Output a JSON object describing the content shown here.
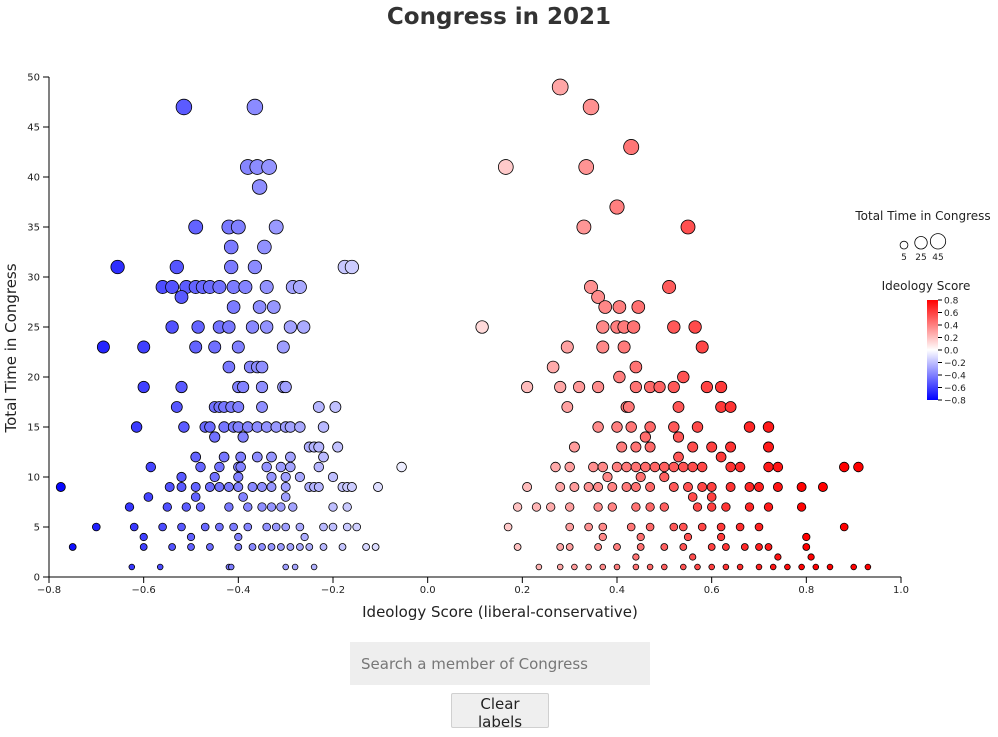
{
  "page": {
    "search_placeholder": "Search a member of Congress",
    "clear_label": "Clear labels"
  },
  "chart_data": {
    "type": "scatter",
    "title": "Congress in 2021",
    "xlabel": "Ideology Score (liberal-conservative)",
    "ylabel": "Total Time in Congress",
    "xlim": [
      -0.8,
      1.0
    ],
    "ylim": [
      0,
      50
    ],
    "xticks": [
      "−0.8",
      "−0.6",
      "−0.4",
      "−0.2",
      "0.0",
      "0.2",
      "0.4",
      "0.6",
      "0.8",
      "1.0"
    ],
    "xtick_values": [
      -0.8,
      -0.6,
      -0.4,
      -0.2,
      0.0,
      0.2,
      0.4,
      0.6,
      0.8,
      1.0
    ],
    "yticks": [
      "0",
      "5",
      "10",
      "15",
      "20",
      "25",
      "30",
      "35",
      "40",
      "45",
      "50"
    ],
    "ytick_values": [
      0,
      5,
      10,
      15,
      20,
      25,
      30,
      35,
      40,
      45,
      50
    ],
    "size_encoding": "Total Time in Congress",
    "color_encoding": "Ideology Score",
    "color_scale": {
      "min": -0.8,
      "max": 0.8,
      "low": "#0000ff",
      "mid": "#ffffff",
      "high": "#ff0000"
    },
    "legend": {
      "size_title": "Total Time in Congress",
      "size_values": [
        5,
        25,
        45
      ],
      "size_labels": [
        "5",
        "25",
        "45"
      ],
      "color_title": "Ideology Score",
      "color_ticks": [
        "0.8",
        "0.6",
        "0.4",
        "0.2",
        "0.0",
        "−0.2",
        "−0.4",
        "−0.6",
        "−0.8"
      ],
      "color_tick_values": [
        0.8,
        0.6,
        0.4,
        0.2,
        0.0,
        -0.2,
        -0.4,
        -0.6,
        -0.8
      ]
    },
    "points": [
      [
        -0.515,
        47
      ],
      [
        -0.365,
        47
      ],
      [
        -0.38,
        41
      ],
      [
        -0.36,
        41
      ],
      [
        -0.335,
        41
      ],
      [
        -0.355,
        39
      ],
      [
        -0.49,
        35
      ],
      [
        -0.42,
        35
      ],
      [
        -0.4,
        35
      ],
      [
        -0.32,
        35
      ],
      [
        -0.415,
        33
      ],
      [
        -0.345,
        33
      ],
      [
        -0.655,
        31
      ],
      [
        -0.53,
        31
      ],
      [
        -0.415,
        31
      ],
      [
        -0.365,
        31
      ],
      [
        -0.175,
        31
      ],
      [
        -0.16,
        31
      ],
      [
        -0.56,
        29
      ],
      [
        -0.54,
        29
      ],
      [
        -0.51,
        29
      ],
      [
        -0.49,
        29
      ],
      [
        -0.475,
        29
      ],
      [
        -0.46,
        29
      ],
      [
        -0.44,
        29
      ],
      [
        -0.41,
        29
      ],
      [
        -0.385,
        29
      ],
      [
        -0.34,
        29
      ],
      [
        -0.285,
        29
      ],
      [
        -0.27,
        29
      ],
      [
        -0.52,
        28
      ],
      [
        -0.41,
        27
      ],
      [
        -0.355,
        27
      ],
      [
        -0.325,
        27
      ],
      [
        -0.54,
        25
      ],
      [
        -0.485,
        25
      ],
      [
        -0.44,
        25
      ],
      [
        -0.42,
        25
      ],
      [
        -0.37,
        25
      ],
      [
        -0.34,
        25
      ],
      [
        -0.29,
        25
      ],
      [
        -0.262,
        25
      ],
      [
        -0.49,
        23
      ],
      [
        -0.45,
        23
      ],
      [
        -0.4,
        23
      ],
      [
        -0.305,
        23
      ],
      [
        -0.685,
        23
      ],
      [
        -0.6,
        23
      ],
      [
        -0.42,
        21
      ],
      [
        -0.375,
        21
      ],
      [
        -0.36,
        21
      ],
      [
        -0.35,
        21
      ],
      [
        -0.6,
        19
      ],
      [
        -0.52,
        19
      ],
      [
        -0.4,
        19
      ],
      [
        -0.39,
        19
      ],
      [
        -0.35,
        19
      ],
      [
        -0.305,
        19
      ],
      [
        -0.3,
        19
      ],
      [
        -0.53,
        17
      ],
      [
        -0.45,
        17
      ],
      [
        -0.44,
        17
      ],
      [
        -0.43,
        17
      ],
      [
        -0.415,
        17
      ],
      [
        -0.4,
        17
      ],
      [
        -0.35,
        17
      ],
      [
        -0.23,
        17
      ],
      [
        -0.195,
        17
      ],
      [
        -0.615,
        15
      ],
      [
        -0.515,
        15
      ],
      [
        -0.47,
        15
      ],
      [
        -0.46,
        15
      ],
      [
        -0.43,
        15
      ],
      [
        -0.41,
        15
      ],
      [
        -0.4,
        15
      ],
      [
        -0.38,
        15
      ],
      [
        -0.36,
        15
      ],
      [
        -0.34,
        15
      ],
      [
        -0.32,
        15
      ],
      [
        -0.3,
        15
      ],
      [
        -0.29,
        15
      ],
      [
        -0.27,
        15
      ],
      [
        -0.22,
        15
      ],
      [
        -0.45,
        14
      ],
      [
        -0.39,
        14
      ],
      [
        -0.25,
        13
      ],
      [
        -0.24,
        13
      ],
      [
        -0.23,
        13
      ],
      [
        -0.19,
        13
      ],
      [
        -0.49,
        12
      ],
      [
        -0.43,
        12
      ],
      [
        -0.395,
        12
      ],
      [
        -0.36,
        12
      ],
      [
        -0.33,
        12
      ],
      [
        -0.29,
        12
      ],
      [
        -0.22,
        12
      ],
      [
        -0.585,
        11
      ],
      [
        -0.48,
        11
      ],
      [
        -0.44,
        11
      ],
      [
        -0.4,
        11
      ],
      [
        -0.395,
        11
      ],
      [
        -0.34,
        11
      ],
      [
        -0.31,
        11
      ],
      [
        -0.29,
        11
      ],
      [
        -0.23,
        11
      ],
      [
        -0.055,
        11
      ],
      [
        -0.52,
        10
      ],
      [
        -0.45,
        10
      ],
      [
        -0.4,
        10
      ],
      [
        -0.33,
        10
      ],
      [
        -0.3,
        10
      ],
      [
        -0.27,
        10
      ],
      [
        -0.2,
        10
      ],
      [
        -0.775,
        9
      ],
      [
        -0.545,
        9
      ],
      [
        -0.52,
        9
      ],
      [
        -0.49,
        9
      ],
      [
        -0.46,
        9
      ],
      [
        -0.44,
        9
      ],
      [
        -0.42,
        9
      ],
      [
        -0.4,
        9
      ],
      [
        -0.37,
        9
      ],
      [
        -0.35,
        9
      ],
      [
        -0.33,
        9
      ],
      [
        -0.3,
        9
      ],
      [
        -0.25,
        9
      ],
      [
        -0.24,
        9
      ],
      [
        -0.23,
        9
      ],
      [
        -0.18,
        9
      ],
      [
        -0.17,
        9
      ],
      [
        -0.16,
        9
      ],
      [
        -0.105,
        9
      ],
      [
        -0.59,
        8
      ],
      [
        -0.49,
        8
      ],
      [
        -0.39,
        8
      ],
      [
        -0.3,
        8
      ],
      [
        -0.63,
        7
      ],
      [
        -0.55,
        7
      ],
      [
        -0.51,
        7
      ],
      [
        -0.48,
        7
      ],
      [
        -0.42,
        7
      ],
      [
        -0.38,
        7
      ],
      [
        -0.35,
        7
      ],
      [
        -0.33,
        7
      ],
      [
        -0.31,
        7
      ],
      [
        -0.285,
        7
      ],
      [
        -0.2,
        7
      ],
      [
        -0.17,
        7
      ],
      [
        -0.7,
        5
      ],
      [
        -0.62,
        5
      ],
      [
        -0.56,
        5
      ],
      [
        -0.52,
        5
      ],
      [
        -0.47,
        5
      ],
      [
        -0.44,
        5
      ],
      [
        -0.41,
        5
      ],
      [
        -0.38,
        5
      ],
      [
        -0.34,
        5
      ],
      [
        -0.32,
        5
      ],
      [
        -0.3,
        5
      ],
      [
        -0.27,
        5
      ],
      [
        -0.22,
        5
      ],
      [
        -0.2,
        5
      ],
      [
        -0.17,
        5
      ],
      [
        -0.15,
        5
      ],
      [
        -0.6,
        4
      ],
      [
        -0.5,
        4
      ],
      [
        -0.4,
        4
      ],
      [
        -0.26,
        4
      ],
      [
        -0.75,
        3
      ],
      [
        -0.6,
        3
      ],
      [
        -0.54,
        3
      ],
      [
        -0.5,
        3
      ],
      [
        -0.46,
        3
      ],
      [
        -0.4,
        3
      ],
      [
        -0.37,
        3
      ],
      [
        -0.35,
        3
      ],
      [
        -0.33,
        3
      ],
      [
        -0.31,
        3
      ],
      [
        -0.29,
        3
      ],
      [
        -0.27,
        3
      ],
      [
        -0.25,
        3
      ],
      [
        -0.22,
        3
      ],
      [
        -0.18,
        3
      ],
      [
        -0.13,
        3
      ],
      [
        -0.11,
        3
      ],
      [
        -0.625,
        1
      ],
      [
        -0.565,
        1
      ],
      [
        -0.42,
        1
      ],
      [
        -0.415,
        1
      ],
      [
        -0.3,
        1
      ],
      [
        -0.28,
        1
      ],
      [
        -0.24,
        1
      ],
      [
        0.28,
        49
      ],
      [
        0.345,
        47
      ],
      [
        0.43,
        43
      ],
      [
        0.165,
        41
      ],
      [
        0.335,
        41
      ],
      [
        0.4,
        37
      ],
      [
        0.33,
        35
      ],
      [
        0.55,
        35
      ],
      [
        0.345,
        29
      ],
      [
        0.51,
        29
      ],
      [
        0.36,
        28
      ],
      [
        0.375,
        27
      ],
      [
        0.405,
        27
      ],
      [
        0.445,
        27
      ],
      [
        0.115,
        25
      ],
      [
        0.37,
        25
      ],
      [
        0.4,
        25
      ],
      [
        0.415,
        25
      ],
      [
        0.435,
        25
      ],
      [
        0.52,
        25
      ],
      [
        0.565,
        25
      ],
      [
        0.295,
        23
      ],
      [
        0.37,
        23
      ],
      [
        0.415,
        23
      ],
      [
        0.58,
        23
      ],
      [
        0.265,
        21
      ],
      [
        0.44,
        21
      ],
      [
        0.405,
        20
      ],
      [
        0.54,
        20
      ],
      [
        0.21,
        19
      ],
      [
        0.28,
        19
      ],
      [
        0.32,
        19
      ],
      [
        0.36,
        19
      ],
      [
        0.44,
        19
      ],
      [
        0.47,
        19
      ],
      [
        0.49,
        19
      ],
      [
        0.52,
        19
      ],
      [
        0.59,
        19
      ],
      [
        0.62,
        19
      ],
      [
        0.295,
        17
      ],
      [
        0.42,
        17
      ],
      [
        0.425,
        17
      ],
      [
        0.53,
        17
      ],
      [
        0.62,
        17
      ],
      [
        0.64,
        17
      ],
      [
        0.36,
        15
      ],
      [
        0.4,
        15
      ],
      [
        0.43,
        15
      ],
      [
        0.47,
        15
      ],
      [
        0.52,
        15
      ],
      [
        0.57,
        15
      ],
      [
        0.68,
        15
      ],
      [
        0.72,
        15
      ],
      [
        0.46,
        14
      ],
      [
        0.53,
        14
      ],
      [
        0.31,
        13
      ],
      [
        0.41,
        13
      ],
      [
        0.44,
        13
      ],
      [
        0.47,
        13
      ],
      [
        0.56,
        13
      ],
      [
        0.6,
        13
      ],
      [
        0.64,
        13
      ],
      [
        0.72,
        13
      ],
      [
        0.53,
        12
      ],
      [
        0.62,
        12
      ],
      [
        0.27,
        11
      ],
      [
        0.3,
        11
      ],
      [
        0.35,
        11
      ],
      [
        0.37,
        11
      ],
      [
        0.4,
        11
      ],
      [
        0.42,
        11
      ],
      [
        0.44,
        11
      ],
      [
        0.46,
        11
      ],
      [
        0.48,
        11
      ],
      [
        0.5,
        11
      ],
      [
        0.52,
        11
      ],
      [
        0.54,
        11
      ],
      [
        0.56,
        11
      ],
      [
        0.58,
        11
      ],
      [
        0.64,
        11
      ],
      [
        0.66,
        11
      ],
      [
        0.72,
        11
      ],
      [
        0.74,
        11
      ],
      [
        0.88,
        11
      ],
      [
        0.91,
        11
      ],
      [
        0.38,
        10
      ],
      [
        0.45,
        10
      ],
      [
        0.5,
        10
      ],
      [
        0.21,
        9
      ],
      [
        0.28,
        9
      ],
      [
        0.31,
        9
      ],
      [
        0.34,
        9
      ],
      [
        0.36,
        9
      ],
      [
        0.39,
        9
      ],
      [
        0.42,
        9
      ],
      [
        0.44,
        9
      ],
      [
        0.47,
        9
      ],
      [
        0.52,
        9
      ],
      [
        0.55,
        9
      ],
      [
        0.58,
        9
      ],
      [
        0.6,
        9
      ],
      [
        0.64,
        9
      ],
      [
        0.68,
        9
      ],
      [
        0.7,
        9
      ],
      [
        0.74,
        9
      ],
      [
        0.79,
        9
      ],
      [
        0.835,
        9
      ],
      [
        0.56,
        8
      ],
      [
        0.6,
        8
      ],
      [
        0.19,
        7
      ],
      [
        0.23,
        7
      ],
      [
        0.26,
        7
      ],
      [
        0.3,
        7
      ],
      [
        0.36,
        7
      ],
      [
        0.39,
        7
      ],
      [
        0.44,
        7
      ],
      [
        0.47,
        7
      ],
      [
        0.5,
        7
      ],
      [
        0.57,
        7
      ],
      [
        0.6,
        7
      ],
      [
        0.63,
        7
      ],
      [
        0.68,
        7
      ],
      [
        0.72,
        7
      ],
      [
        0.79,
        7
      ],
      [
        0.17,
        5
      ],
      [
        0.3,
        5
      ],
      [
        0.34,
        5
      ],
      [
        0.37,
        5
      ],
      [
        0.43,
        5
      ],
      [
        0.47,
        5
      ],
      [
        0.52,
        5
      ],
      [
        0.54,
        5
      ],
      [
        0.58,
        5
      ],
      [
        0.62,
        5
      ],
      [
        0.66,
        5
      ],
      [
        0.7,
        5
      ],
      [
        0.88,
        5
      ],
      [
        0.37,
        4
      ],
      [
        0.45,
        4
      ],
      [
        0.55,
        4
      ],
      [
        0.62,
        4
      ],
      [
        0.8,
        4
      ],
      [
        0.19,
        3
      ],
      [
        0.28,
        3
      ],
      [
        0.3,
        3
      ],
      [
        0.36,
        3
      ],
      [
        0.4,
        3
      ],
      [
        0.45,
        3
      ],
      [
        0.5,
        3
      ],
      [
        0.54,
        3
      ],
      [
        0.6,
        3
      ],
      [
        0.63,
        3
      ],
      [
        0.67,
        3
      ],
      [
        0.7,
        3
      ],
      [
        0.72,
        3
      ],
      [
        0.8,
        3
      ],
      [
        0.44,
        2
      ],
      [
        0.56,
        2
      ],
      [
        0.74,
        2
      ],
      [
        0.81,
        2
      ],
      [
        0.235,
        1
      ],
      [
        0.28,
        1
      ],
      [
        0.31,
        1
      ],
      [
        0.34,
        1
      ],
      [
        0.37,
        1
      ],
      [
        0.4,
        1
      ],
      [
        0.44,
        1
      ],
      [
        0.47,
        1
      ],
      [
        0.5,
        1
      ],
      [
        0.54,
        1
      ],
      [
        0.57,
        1
      ],
      [
        0.6,
        1
      ],
      [
        0.63,
        1
      ],
      [
        0.66,
        1
      ],
      [
        0.7,
        1
      ],
      [
        0.73,
        1
      ],
      [
        0.76,
        1
      ],
      [
        0.79,
        1
      ],
      [
        0.82,
        1
      ],
      [
        0.85,
        1
      ],
      [
        0.9,
        1
      ],
      [
        0.93,
        1
      ]
    ]
  }
}
